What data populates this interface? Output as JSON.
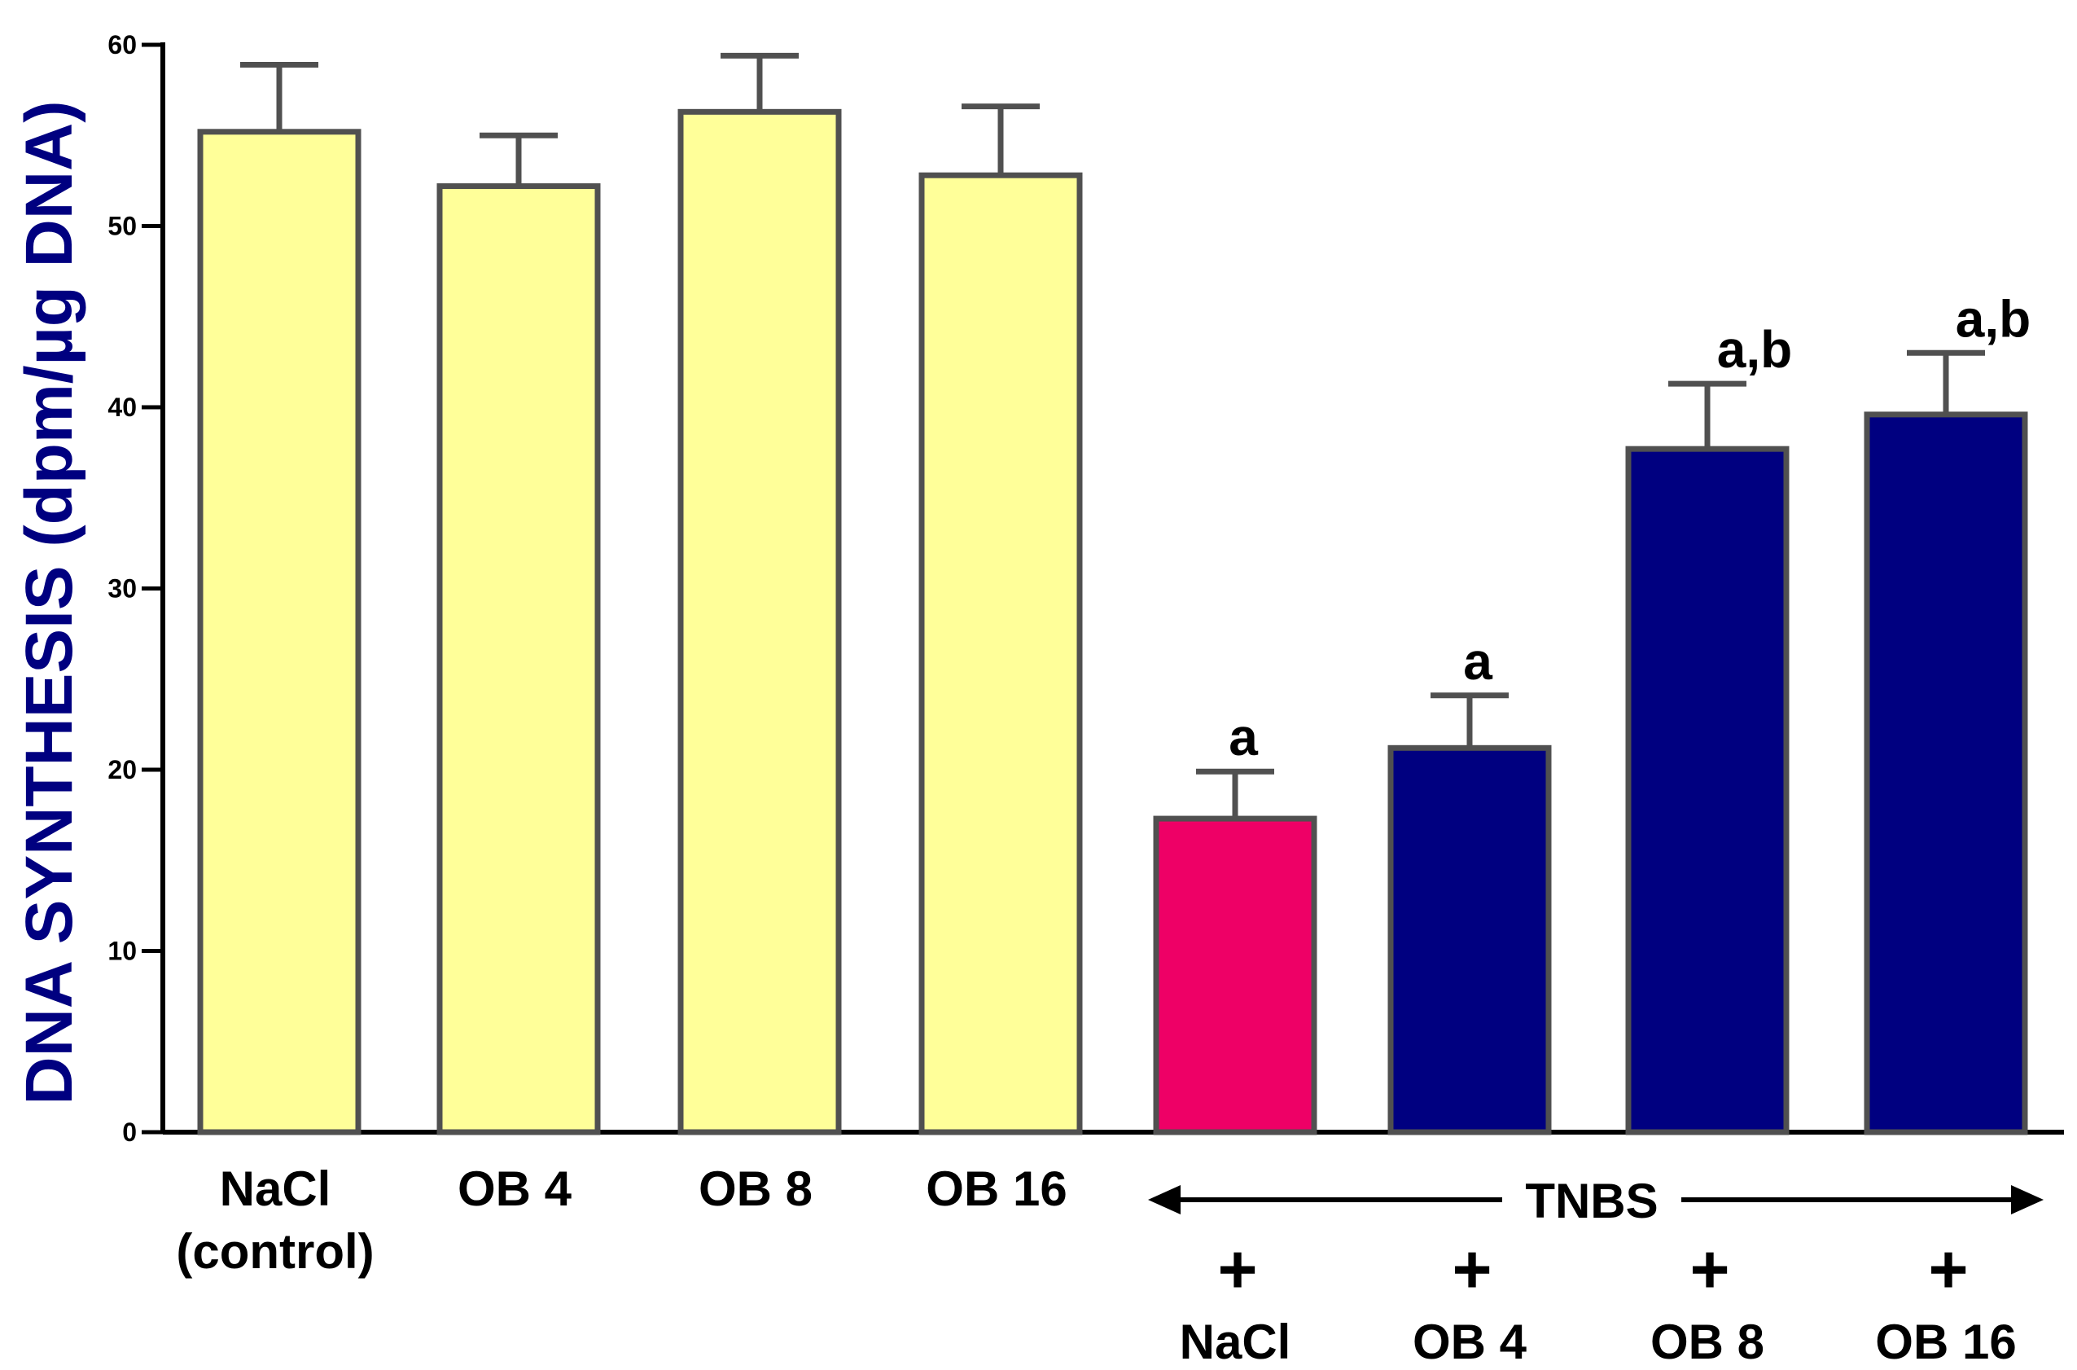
{
  "chart_data": {
    "type": "bar",
    "title": "",
    "xlabel": "",
    "ylabel": "DNA SYNTHESIS (dpm/µg DNA)",
    "ylim": [
      0,
      60
    ],
    "yticks": [
      "0",
      "10",
      "20",
      "30",
      "40",
      "50",
      "60"
    ],
    "grid": false,
    "categories": [
      {
        "lines": [
          "NaCl",
          "(control)"
        ]
      },
      {
        "lines": [
          "OB 4"
        ]
      },
      {
        "lines": [
          "OB 8"
        ]
      },
      {
        "lines": [
          "OB 16"
        ]
      },
      {
        "plus": "+",
        "lines": [
          "NaCl"
        ]
      },
      {
        "plus": "+",
        "lines": [
          "OB 4"
        ]
      },
      {
        "plus": "+",
        "lines": [
          "OB 8"
        ]
      },
      {
        "plus": "+",
        "lines": [
          "OB 16"
        ]
      }
    ],
    "values": [
      55.2,
      52.2,
      56.3,
      52.8,
      17.3,
      21.2,
      37.7,
      39.6
    ],
    "errors": [
      3.7,
      2.8,
      3.1,
      3.8,
      2.6,
      2.9,
      3.6,
      3.4
    ],
    "annotations": [
      "",
      "",
      "",
      "",
      "a",
      "a",
      "a,b",
      "a,b"
    ],
    "colors": [
      "#FFFF99",
      "#FFFF99",
      "#FFFF99",
      "#FFFF99",
      "#EE0066",
      "#000080",
      "#000080",
      "#000080"
    ],
    "group_label": "TNBS"
  }
}
